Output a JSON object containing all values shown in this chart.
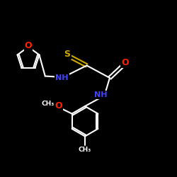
{
  "background_color": "#000000",
  "bond_color": "#ffffff",
  "S_color": "#ccaa00",
  "N_color": "#4444ff",
  "O_color": "#ff2200",
  "C_color": "#ffffff",
  "figsize": [
    2.5,
    2.5
  ],
  "dpi": 100,
  "xlim": [
    0,
    10
  ],
  "ylim": [
    0,
    10
  ]
}
